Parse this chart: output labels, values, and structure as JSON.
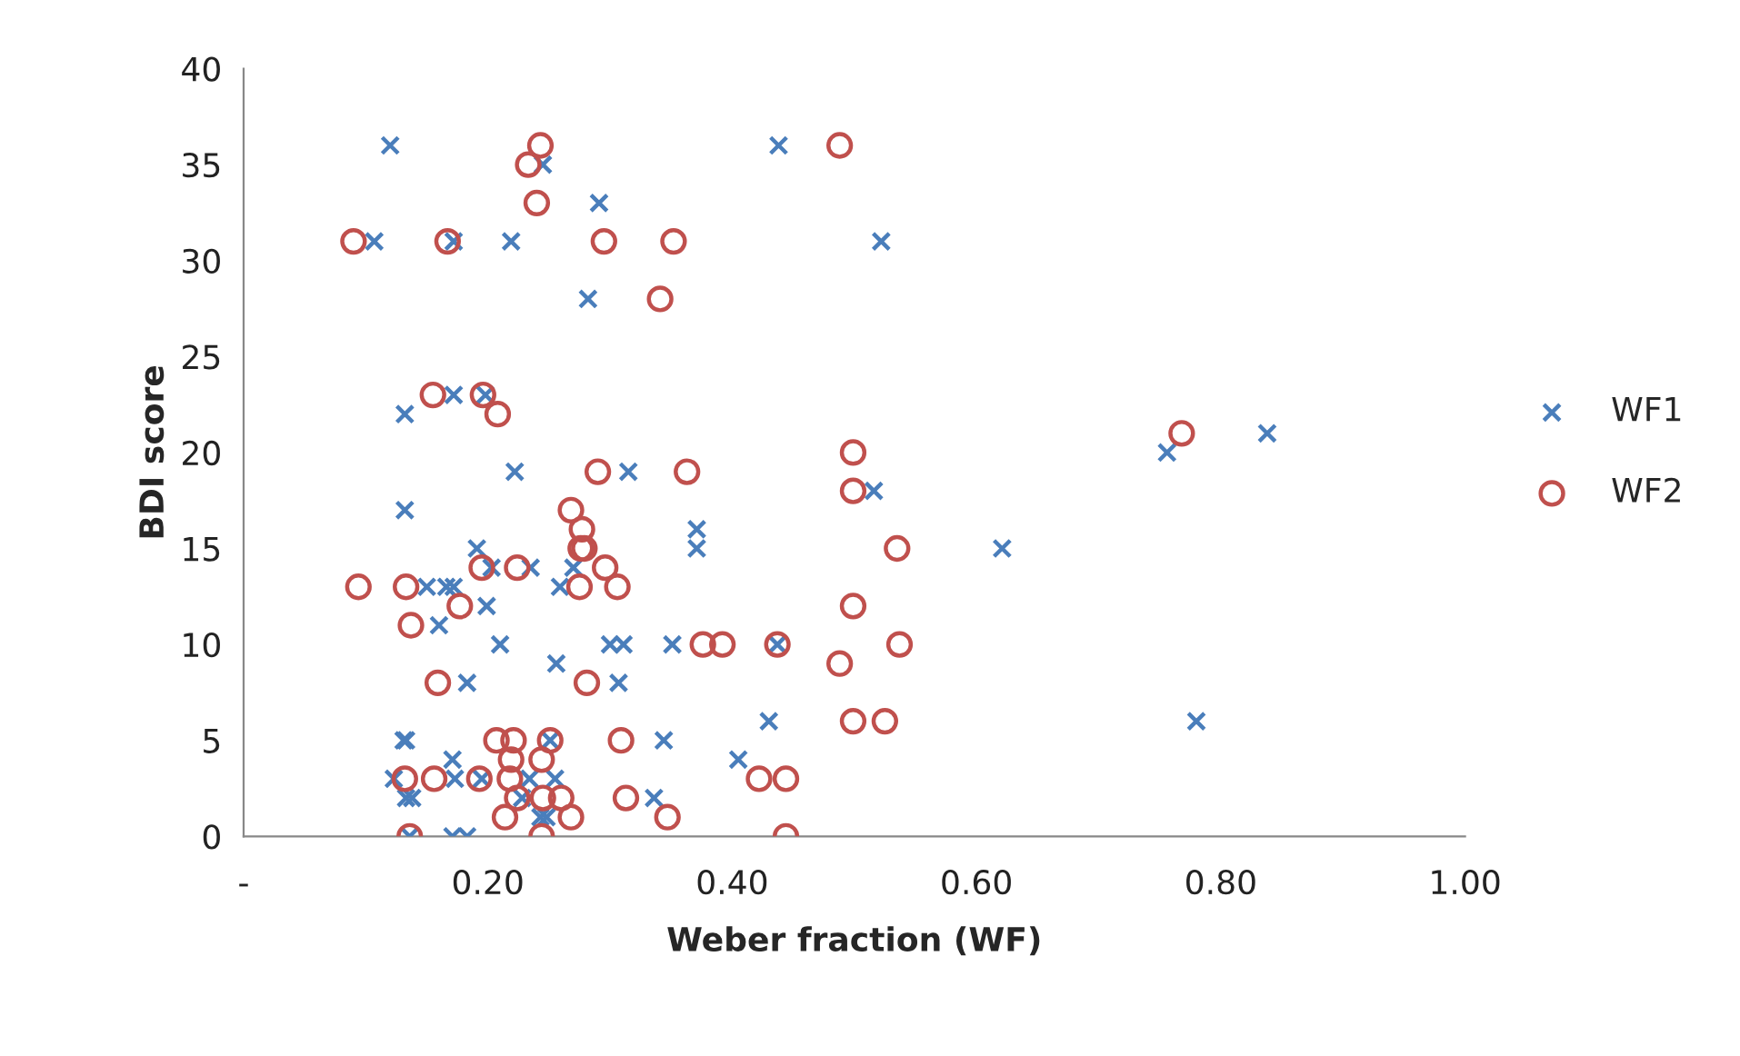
{
  "chart_data": {
    "type": "scatter",
    "xlabel": "Weber fraction (WF)",
    "ylabel": "BDI score",
    "xlim": [
      0,
      1
    ],
    "xticks": [
      {
        "value": 0,
        "label": "-"
      },
      {
        "value": 0.2,
        "label": "0.20"
      },
      {
        "value": 0.4,
        "label": "0.40"
      },
      {
        "value": 0.6,
        "label": "0.60"
      },
      {
        "value": 0.8,
        "label": "0.80"
      },
      {
        "value": 1.0,
        "label": "1.00"
      }
    ],
    "ylim": [
      0,
      40
    ],
    "yticks": [
      0,
      5,
      10,
      15,
      20,
      25,
      30,
      35,
      40
    ],
    "grid": false,
    "legend": "right",
    "series": [
      {
        "name": "WF1",
        "color": "#4a7ebb",
        "marker": "cross",
        "x": [
          0.12,
          0.245,
          0.291,
          0.107,
          0.172,
          0.219,
          0.282,
          0.132,
          0.172,
          0.198,
          0.222,
          0.315,
          0.438,
          0.522,
          0.838,
          0.756,
          0.516,
          0.371,
          0.371,
          0.621,
          0.27,
          0.259,
          0.3,
          0.311,
          0.351,
          0.437,
          0.256,
          0.307,
          0.43,
          0.78,
          0.344,
          0.405,
          0.336,
          0.132,
          0.191,
          0.15,
          0.166,
          0.172,
          0.16,
          0.199,
          0.203,
          0.235,
          0.21,
          0.183,
          0.131,
          0.133,
          0.251,
          0.171,
          0.123,
          0.173,
          0.195,
          0.234,
          0.255,
          0.133,
          0.138,
          0.228,
          0.243,
          0.248,
          0.136,
          0.171,
          0.183
        ],
        "values": [
          36,
          35,
          33,
          31,
          31,
          31,
          28,
          22,
          23,
          23,
          19,
          19,
          36,
          31,
          21,
          20,
          18,
          16,
          15,
          15,
          14,
          13,
          10,
          10,
          10,
          10,
          9,
          8,
          6,
          6,
          5,
          4,
          2,
          17,
          15,
          13,
          13,
          13,
          11,
          12,
          14,
          14,
          10,
          8,
          5,
          5,
          5,
          4,
          3,
          3,
          3,
          3,
          3,
          2,
          2,
          2,
          1,
          1,
          0,
          0,
          0
        ]
      },
      {
        "name": "WF2",
        "color": "#c0504d",
        "marker": "circle",
        "x": [
          0.243,
          0.233,
          0.24,
          0.09,
          0.167,
          0.295,
          0.352,
          0.341,
          0.155,
          0.196,
          0.208,
          0.29,
          0.363,
          0.488,
          0.768,
          0.499,
          0.499,
          0.268,
          0.277,
          0.276,
          0.279,
          0.296,
          0.275,
          0.306,
          0.535,
          0.499,
          0.376,
          0.392,
          0.437,
          0.537,
          0.488,
          0.281,
          0.499,
          0.525,
          0.309,
          0.422,
          0.444,
          0.313,
          0.347,
          0.444,
          0.26,
          0.268,
          0.094,
          0.133,
          0.137,
          0.177,
          0.195,
          0.224,
          0.159,
          0.207,
          0.221,
          0.251,
          0.219,
          0.244,
          0.132,
          0.156,
          0.193,
          0.218,
          0.224,
          0.245,
          0.214,
          0.136,
          0.244
        ],
        "values": [
          36,
          35,
          33,
          31,
          31,
          31,
          31,
          28,
          23,
          23,
          22,
          19,
          19,
          36,
          21,
          20,
          18,
          17,
          16,
          15,
          15,
          14,
          13,
          13,
          15,
          12,
          10,
          10,
          10,
          10,
          9,
          8,
          6,
          6,
          5,
          3,
          3,
          2,
          1,
          0,
          2,
          1,
          13,
          13,
          11,
          12,
          14,
          14,
          8,
          5,
          5,
          5,
          4,
          4,
          3,
          3,
          3,
          3,
          2,
          2,
          1,
          0,
          0
        ]
      }
    ]
  }
}
